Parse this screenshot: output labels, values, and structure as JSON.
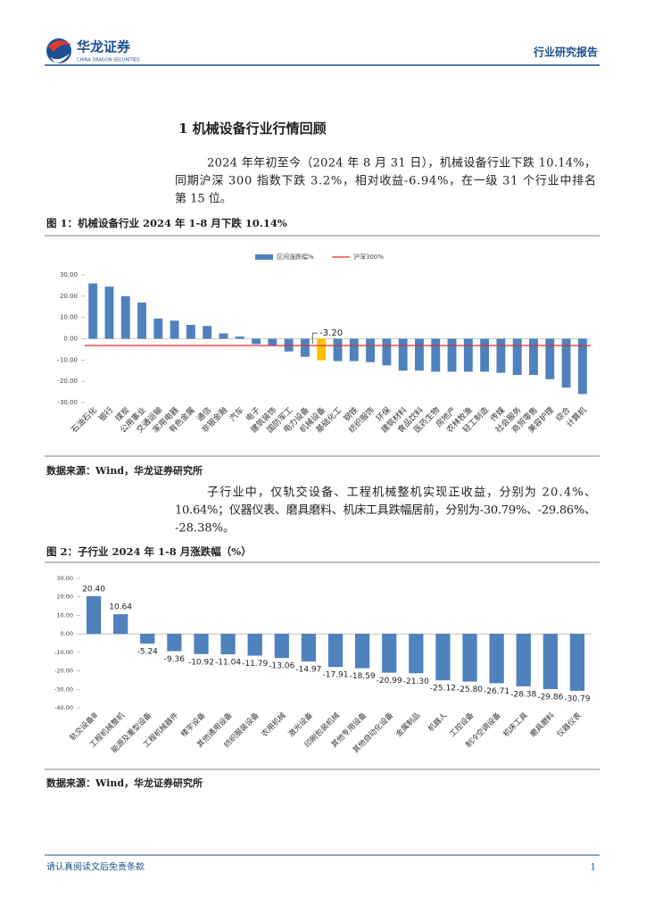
{
  "header": {
    "brand": "华龙证券",
    "brand_en": "CHINA DRAGON SECURITIES",
    "report_type": "行业研究报告"
  },
  "section_title": "1 机械设备行业行情回顾",
  "paragraphs": [
    [
      "2024 年年初至今（2024 年 8 月 31 日），机械设备行业下跌 10.14%，",
      "同期沪深 300 指数下跌 3.2%，相对收益-6.94%，在一级 31 个行业中排名",
      "第 15 位。"
    ],
    [
      "子行业中，仅轨交设备、工程机械整机实现正收益，分别为 20.4%、",
      "10.64%；仪器仪表、磨具磨料、机床工具跌幅居前，分别为-30.79%、-29.86%、",
      "-28.38%。"
    ]
  ],
  "figures": [
    {
      "caption": "图 1：机械设备行业 2024 年 1-8 月下跌 10.14%",
      "source": "数据来源：Wind，华龙证券研究所"
    },
    {
      "caption": "图 2：子行业 2024 年 1-8 月涨跌幅（%）",
      "source": "数据来源：Wind，华龙证券研究所"
    }
  ],
  "chart_data": [
    {
      "type": "bar",
      "categories": [
        "石油石化",
        "银行",
        "煤炭",
        "公用事业",
        "交通运输",
        "家用电器",
        "有色金属",
        "通信",
        "非银金融",
        "汽车",
        "电子",
        "建筑装饰",
        "国防军工",
        "电力设备",
        "机械设备",
        "基础化工",
        "钢铁",
        "纺织服饰",
        "环保",
        "建筑材料",
        "食品饮料",
        "医药生物",
        "房地产",
        "农林牧渔",
        "轻工制造",
        "传媒",
        "社会服务",
        "商贸零售",
        "美容护理",
        "综合",
        "计算机"
      ],
      "series": [
        {
          "name": "区间涨跌幅%",
          "color": "#4f81bd",
          "colors": [
            "#4f81bd",
            "#4f81bd",
            "#4f81bd",
            "#4f81bd",
            "#4f81bd",
            "#4f81bd",
            "#4f81bd",
            "#4f81bd",
            "#4f81bd",
            "#4f81bd",
            "#4f81bd",
            "#4f81bd",
            "#4f81bd",
            "#4f81bd",
            "#ffc000",
            "#4f81bd",
            "#4f81bd",
            "#4f81bd",
            "#4f81bd",
            "#4f81bd",
            "#4f81bd",
            "#4f81bd",
            "#4f81bd",
            "#4f81bd",
            "#4f81bd",
            "#4f81bd",
            "#4f81bd",
            "#4f81bd",
            "#4f81bd",
            "#4f81bd",
            "#4f81bd"
          ],
          "values": [
            26,
            24.5,
            20,
            17,
            9.5,
            8.5,
            6.5,
            6,
            2.5,
            1,
            -2.5,
            -3,
            -6,
            -8.5,
            -10.14,
            -10.5,
            -10.5,
            -11,
            -12.5,
            -15,
            -15,
            -15.5,
            -15.5,
            -15.5,
            -15.5,
            -16,
            -17,
            -17,
            -19,
            -23,
            -26
          ]
        }
      ],
      "reference": {
        "name": "沪深300%",
        "color": "#e0302f",
        "value": -3.2,
        "value_label": "-3.20"
      },
      "ylim": [
        -30,
        30
      ],
      "yticks": [
        {
          "value": -30,
          "label": "-30.00"
        },
        {
          "value": -20,
          "label": "-20.00"
        },
        {
          "value": -10,
          "label": "-10.00"
        },
        {
          "value": 0,
          "label": "0.00"
        },
        {
          "value": 10,
          "label": "10.00"
        },
        {
          "value": 20,
          "label": "20.00"
        },
        {
          "value": 30,
          "label": "30.00"
        }
      ]
    },
    {
      "type": "bar",
      "categories": [
        "轨交设备Ⅲ",
        "工程机械整机",
        "能源及重型设备",
        "工程机械器件",
        "楼宇设备",
        "其他通用设备",
        "纺织服装设备",
        "农用机械",
        "激光设备",
        "印刷包装机械",
        "其他专用设备",
        "其他自动化设备",
        "金属制品",
        "机器人",
        "工控设备",
        "制冷空调设备",
        "机床工具",
        "磨具磨料",
        "仪器仪表"
      ],
      "series": [
        {
          "name": "涨跌幅",
          "color": "#4f81bd",
          "values": [
            20.4,
            10.64,
            -5.24,
            -9.36,
            -10.92,
            -11.04,
            -11.79,
            -13.06,
            -14.97,
            -17.91,
            -18.59,
            -20.99,
            -21.3,
            -25.12,
            -25.8,
            -26.71,
            -28.38,
            -29.86,
            -30.79
          ],
          "value_labels": [
            "20.40",
            "10.64",
            "-5.24",
            "-9.36",
            "-10.92",
            "-11.04",
            "-11.79",
            "-13.06",
            "-14.97",
            "-17.91",
            "-18.59",
            "-20.99",
            "-21.30",
            "-25.12",
            "-25.80",
            "-26.71",
            "-28.38",
            "-29.86",
            "-30.79"
          ]
        }
      ],
      "ylim": [
        -40,
        30
      ],
      "yticks": [
        {
          "value": -40,
          "label": "-40.00"
        },
        {
          "value": -30,
          "label": "-30.00"
        },
        {
          "value": -20,
          "label": "-20.00"
        },
        {
          "value": -10,
          "label": "-10.00"
        },
        {
          "value": 0,
          "label": "0.00"
        },
        {
          "value": 10,
          "label": "10.00"
        },
        {
          "value": 20,
          "label": "20.00"
        },
        {
          "value": 30,
          "label": "30.00"
        }
      ]
    }
  ],
  "footer": {
    "disclaimer": "请认真阅读文后免责条款",
    "page": 1
  }
}
